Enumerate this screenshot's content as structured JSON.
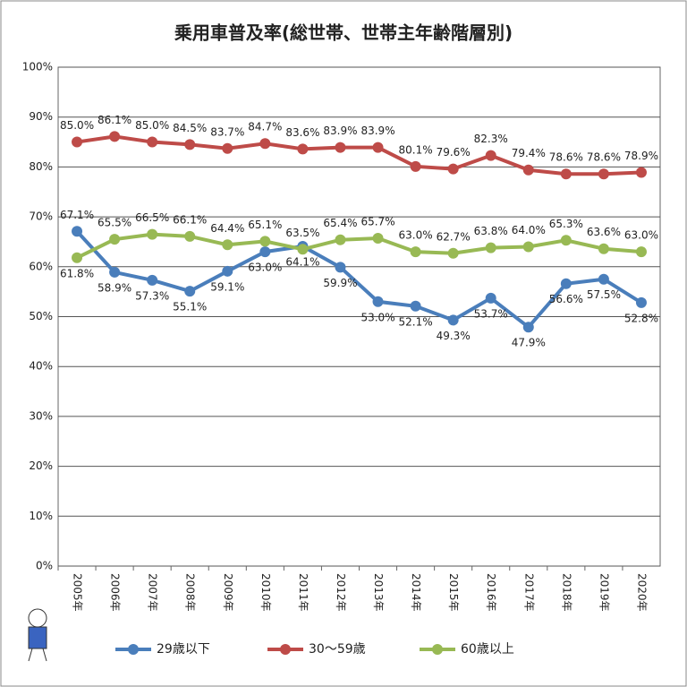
{
  "chart_data": {
    "type": "line",
    "title": "乗用車普及率(総世帯、世帯主年齢階層別)",
    "categories": [
      "2005年",
      "2006年",
      "2007年",
      "2008年",
      "2009年",
      "2010年",
      "2011年",
      "2012年",
      "2013年",
      "2014年",
      "2015年",
      "2016年",
      "2017年",
      "2018年",
      "2019年",
      "2020年"
    ],
    "series": [
      {
        "name": "29歳以下",
        "color": "#4a7ebb",
        "values": [
          67.1,
          58.9,
          57.3,
          55.1,
          59.1,
          63.0,
          64.1,
          59.9,
          53.0,
          52.1,
          49.3,
          53.7,
          47.9,
          56.6,
          57.5,
          52.8
        ],
        "value_labels": [
          "67.1%",
          "58.9%",
          "57.3%",
          "55.1%",
          "59.1%",
          "63.0%",
          "64.1%",
          "59.9%",
          "53.0%",
          "52.1%",
          "49.3%",
          "53.7%",
          "47.9%",
          "56.6%",
          "57.5%",
          "52.8%"
        ]
      },
      {
        "name": "30～59歳",
        "color": "#be4b48",
        "values": [
          85.0,
          86.1,
          85.0,
          84.5,
          83.7,
          84.7,
          83.6,
          83.9,
          83.9,
          80.1,
          79.6,
          82.3,
          79.4,
          78.6,
          78.6,
          78.9
        ],
        "value_labels": [
          "85.0%",
          "86.1%",
          "85.0%",
          "84.5%",
          "83.7%",
          "84.7%",
          "83.6%",
          "83.9%",
          "83.9%",
          "80.1%",
          "79.6%",
          "82.3%",
          "79.4%",
          "78.6%",
          "78.6%",
          "78.9%"
        ]
      },
      {
        "name": "60歳以上",
        "color": "#98b954",
        "values": [
          61.8,
          65.5,
          66.5,
          66.1,
          64.4,
          65.1,
          63.5,
          65.4,
          65.7,
          63.0,
          62.7,
          63.8,
          64.0,
          65.3,
          63.6,
          63.0
        ],
        "value_labels": [
          "61.8%",
          "65.5%",
          "66.5%",
          "66.1%",
          "64.4%",
          "65.1%",
          "63.5%",
          "65.4%",
          "65.7%",
          "63.0%",
          "62.7%",
          "63.8%",
          "64.0%",
          "65.3%",
          "63.6%",
          "63.0%"
        ]
      }
    ],
    "ylim": [
      0,
      100
    ],
    "yticks": [
      {
        "value": 0,
        "label": "0%"
      },
      {
        "value": 10,
        "label": "10%"
      },
      {
        "value": 20,
        "label": "20%"
      },
      {
        "value": 30,
        "label": "30%"
      },
      {
        "value": 40,
        "label": "40%"
      },
      {
        "value": 50,
        "label": "50%"
      },
      {
        "value": 60,
        "label": "60%"
      },
      {
        "value": 70,
        "label": "70%"
      },
      {
        "value": 80,
        "label": "80%"
      },
      {
        "value": 90,
        "label": "90%"
      },
      {
        "value": 100,
        "label": "100%"
      }
    ],
    "grid": true,
    "legend": "bottom"
  }
}
